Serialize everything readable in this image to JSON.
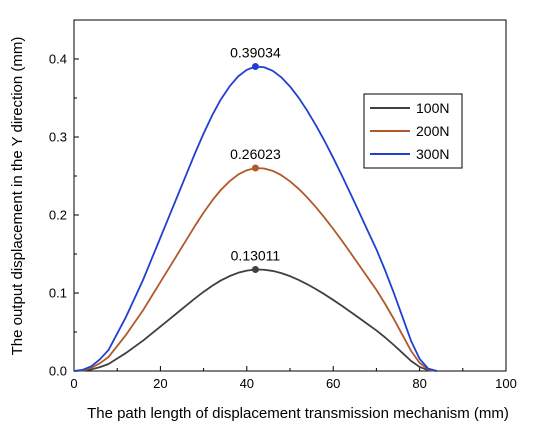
{
  "chart_data": {
    "type": "line",
    "title": "",
    "xlabel": "The path length of displacement transmission mechanism (mm)",
    "ylabel": "The output displacement in the Y direction (mm)",
    "xlim": [
      0,
      100
    ],
    "ylim": [
      0,
      0.45
    ],
    "xticks": [
      "0",
      "20",
      "40",
      "60",
      "80",
      "100"
    ],
    "yticks": [
      "0.0",
      "0.1",
      "0.2",
      "0.3",
      "0.4"
    ],
    "grid": false,
    "legend_position": "top-right",
    "x": [
      0,
      2,
      4,
      6,
      8,
      10,
      12,
      14,
      16,
      18,
      20,
      22,
      24,
      26,
      28,
      30,
      32,
      34,
      36,
      38,
      40,
      42,
      44,
      46,
      48,
      50,
      52,
      54,
      56,
      58,
      60,
      62,
      64,
      66,
      68,
      70,
      72,
      74,
      76,
      78,
      80,
      82,
      84
    ],
    "series": [
      {
        "name": "100N",
        "color": "#404040",
        "values": [
          0,
          0.0005,
          0.002,
          0.005,
          0.009,
          0.016,
          0.023,
          0.031,
          0.039,
          0.048,
          0.057,
          0.066,
          0.075,
          0.084,
          0.093,
          0.1015,
          0.1093,
          0.1161,
          0.1216,
          0.1259,
          0.1287,
          0.1301,
          0.1298,
          0.1283,
          0.1255,
          0.1216,
          0.1168,
          0.1112,
          0.105,
          0.0983,
          0.0911,
          0.0836,
          0.0758,
          0.0679,
          0.0599,
          0.052,
          0.0431,
          0.0335,
          0.0233,
          0.013,
          0.0052,
          0.001,
          0
        ]
      },
      {
        "name": "200N",
        "color": "#b05a2a",
        "values": [
          0,
          0.001,
          0.004,
          0.01,
          0.018,
          0.032,
          0.046,
          0.062,
          0.078,
          0.096,
          0.114,
          0.132,
          0.15,
          0.168,
          0.186,
          0.203,
          0.2186,
          0.2322,
          0.2432,
          0.2518,
          0.2574,
          0.2602,
          0.2596,
          0.2566,
          0.251,
          0.2432,
          0.2336,
          0.2224,
          0.21,
          0.1966,
          0.1822,
          0.1672,
          0.1516,
          0.1358,
          0.1198,
          0.104,
          0.0862,
          0.067,
          0.0466,
          0.026,
          0.0104,
          0.002,
          0
        ]
      },
      {
        "name": "300N",
        "color": "#2040d0",
        "values": [
          0,
          0.0015,
          0.006,
          0.015,
          0.027,
          0.048,
          0.069,
          0.093,
          0.117,
          0.144,
          0.171,
          0.198,
          0.225,
          0.252,
          0.279,
          0.3045,
          0.3279,
          0.3483,
          0.3648,
          0.3777,
          0.3861,
          0.3903,
          0.3894,
          0.3849,
          0.3765,
          0.3648,
          0.3504,
          0.3336,
          0.315,
          0.2949,
          0.2733,
          0.2508,
          0.2274,
          0.2037,
          0.1797,
          0.156,
          0.1293,
          0.1005,
          0.0699,
          0.039,
          0.0156,
          0.003,
          0
        ]
      }
    ],
    "annotations": [
      {
        "x": 42,
        "y": 0.39034,
        "text": "0.39034",
        "series": "300N"
      },
      {
        "x": 42,
        "y": 0.26023,
        "text": "0.26023",
        "series": "200N"
      },
      {
        "x": 42,
        "y": 0.13011,
        "text": "0.13011",
        "series": "100N"
      }
    ]
  }
}
